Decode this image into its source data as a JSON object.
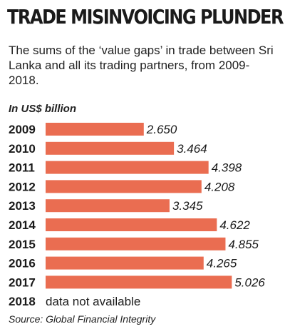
{
  "header": {
    "title": "TRADE MISINVOICING PLUNDER",
    "subtitle": "The sums of the ‘value gaps’ in trade between Sri Lanka and all its trading partners, from 2009-2018.",
    "units": "In US$ billion"
  },
  "footer": {
    "source": "Source: Global Financial Integrity"
  },
  "colors": {
    "bar": "#ea6d51",
    "text": "#1a1a1a"
  },
  "chart_data": {
    "type": "bar",
    "orientation": "horizontal",
    "categories": [
      "2009",
      "2010",
      "2011",
      "2012",
      "2013",
      "2014",
      "2015",
      "2016",
      "2017",
      "2018"
    ],
    "values": [
      2.65,
      3.464,
      4.398,
      4.208,
      3.345,
      4.622,
      4.855,
      4.265,
      5.026,
      null
    ],
    "value_labels": [
      "2.650",
      "3.464",
      "4.398",
      "4.208",
      "3.345",
      "4.622",
      "4.855",
      "4.265",
      "5.026",
      ""
    ],
    "missing_label": "data not available",
    "grid": false,
    "legend": "none"
  }
}
